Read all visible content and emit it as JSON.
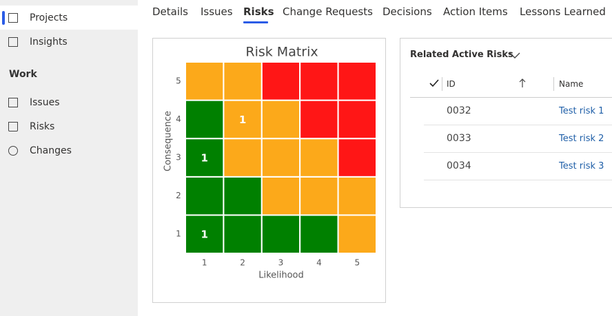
{
  "sidebar": {
    "top_items": [
      "Projects",
      "Insights"
    ],
    "section": "Work",
    "section_items": [
      "Issues",
      "Risks",
      "Changes"
    ]
  },
  "tabs": [
    "Details",
    "Issues",
    "Risks",
    "Change Requests",
    "Decisions",
    "Action Items",
    "Lessons Learned"
  ],
  "chart_data": {
    "type": "heatmap",
    "title": "Risk Matrix",
    "x_label": "Likelihood",
    "y_label": "Consequence",
    "x_categories": [
      "1",
      "2",
      "3",
      "4",
      "5"
    ],
    "y_categories": [
      "1",
      "2",
      "3",
      "4",
      "5"
    ],
    "values": [
      [
        1,
        null,
        null,
        null,
        null
      ],
      [
        null,
        null,
        null,
        null,
        null
      ],
      [
        1,
        null,
        null,
        null,
        null
      ],
      [
        null,
        1,
        null,
        null,
        null
      ],
      [
        null,
        null,
        null,
        null,
        null
      ]
    ],
    "colors": [
      [
        "#008000",
        "#008000",
        "#008000",
        "#008000",
        "#fca91a"
      ],
      [
        "#008000",
        "#008000",
        "#fca91a",
        "#fca91a",
        "#fca91a"
      ],
      [
        "#008000",
        "#fca91a",
        "#fca91a",
        "#fca91a",
        "#ff1616"
      ],
      [
        "#008000",
        "#fca91a",
        "#fca91a",
        "#ff1616",
        "#ff1616"
      ],
      [
        "#fca91a",
        "#fca91a",
        "#ff1616",
        "#ff1616",
        "#ff1616"
      ]
    ]
  },
  "related_risks": {
    "title": "Related Active Risks",
    "columns": [
      "ID",
      "Name"
    ],
    "rows": [
      [
        "0032",
        "Test risk 1"
      ],
      [
        "0033",
        "Test risk 2"
      ],
      [
        "0034",
        "Test risk 3"
      ]
    ]
  }
}
